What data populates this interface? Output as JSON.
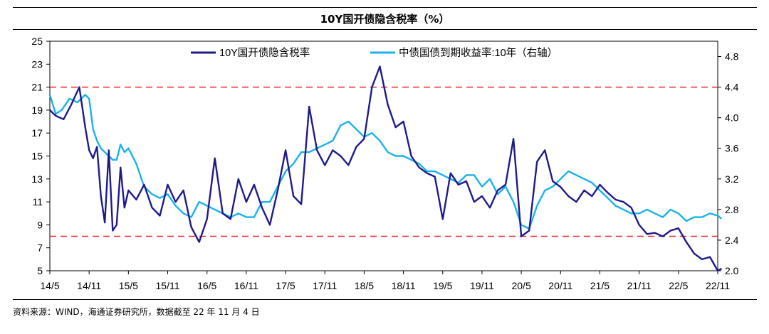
{
  "title": "10Y国开债隐含税率（%）",
  "source": "资料来源：WIND，海通证券研究所，数据截至 22 年 11 月 4 日",
  "colors": {
    "series1": "#1f1a8a",
    "series2": "#19b2ea",
    "ref": "#e8262a",
    "axis": "#000000"
  },
  "chart_data": {
    "type": "line",
    "x_ticks": [
      "14/5",
      "14/11",
      "15/5",
      "15/11",
      "16/5",
      "16/11",
      "17/5",
      "17/11",
      "18/5",
      "18/11",
      "19/5",
      "19/11",
      "20/5",
      "20/11",
      "21/5",
      "21/11",
      "22/5",
      "22/11"
    ],
    "yleft": {
      "lim": [
        5,
        25
      ],
      "ticks": [
        "5",
        "7",
        "9",
        "11",
        "13",
        "15",
        "17",
        "19",
        "21",
        "23",
        "25"
      ]
    },
    "yright": {
      "lim": [
        2.0,
        5.0
      ],
      "ticks": [
        "2.0",
        "2.4",
        "2.8",
        "3.2",
        "3.6",
        "4.0",
        "4.4",
        "4.8"
      ]
    },
    "reference_lines_left": [
      21,
      8
    ],
    "legend_position": "top-center",
    "series": [
      {
        "name": "10Y国开债隐含税率",
        "axis": "left",
        "x": [
          0,
          0.15,
          0.35,
          0.55,
          0.75,
          0.9,
          1.0,
          1.1,
          1.2,
          1.3,
          1.4,
          1.5,
          1.6,
          1.7,
          1.8,
          1.9,
          2.0,
          2.2,
          2.4,
          2.6,
          2.8,
          3.0,
          3.2,
          3.4,
          3.6,
          3.8,
          4.0,
          4.2,
          4.4,
          4.6,
          4.8,
          5.0,
          5.2,
          5.4,
          5.6,
          5.8,
          6.0,
          6.2,
          6.4,
          6.6,
          6.8,
          7.0,
          7.2,
          7.4,
          7.6,
          7.8,
          8.0,
          8.2,
          8.4,
          8.6,
          8.8,
          9.0,
          9.2,
          9.4,
          9.6,
          9.8,
          10.0,
          10.2,
          10.4,
          10.6,
          10.8,
          11.0,
          11.2,
          11.4,
          11.6,
          11.8,
          12.0,
          12.2,
          12.4,
          12.6,
          12.8,
          13.0,
          13.2,
          13.4,
          13.6,
          13.8,
          14.0,
          14.2,
          14.4,
          14.6,
          14.8,
          15.0,
          15.2,
          15.4,
          15.6,
          15.8,
          16.0,
          16.2,
          16.4,
          16.6,
          16.8,
          17.0,
          17.1
        ],
        "values": [
          19.0,
          18.5,
          18.2,
          19.5,
          21.0,
          17.5,
          15.5,
          14.8,
          15.8,
          11.5,
          9.2,
          15.5,
          8.5,
          9.0,
          14.0,
          10.5,
          12.0,
          11.2,
          12.5,
          10.5,
          9.8,
          12.5,
          11.0,
          12.0,
          8.8,
          7.5,
          9.5,
          14.8,
          10.0,
          9.5,
          13.0,
          11.0,
          12.5,
          10.5,
          9.0,
          12.0,
          15.5,
          11.5,
          10.8,
          19.3,
          15.5,
          14.2,
          15.5,
          15.0,
          14.2,
          15.8,
          16.5,
          21.0,
          22.8,
          19.5,
          17.5,
          18.0,
          15.0,
          14.0,
          13.5,
          13.2,
          9.5,
          13.5,
          12.5,
          12.8,
          11.0,
          11.5,
          10.5,
          12.0,
          12.5,
          16.5,
          8.0,
          8.5,
          14.5,
          15.5,
          12.8,
          12.3,
          11.5,
          11.0,
          12.0,
          11.5,
          12.5,
          11.8,
          11.2,
          11.0,
          10.5,
          9.0,
          8.2,
          8.3,
          8.0,
          8.5,
          8.7,
          7.5,
          6.5,
          6.0,
          6.2,
          5.0,
          5.2
        ]
      },
      {
        "name": "中债国债到期收益率:10年（右轴）",
        "axis": "right",
        "x": [
          0,
          0.15,
          0.3,
          0.5,
          0.7,
          0.9,
          1.0,
          1.1,
          1.2,
          1.3,
          1.4,
          1.5,
          1.6,
          1.7,
          1.8,
          1.9,
          2.0,
          2.2,
          2.4,
          2.6,
          2.8,
          3.0,
          3.2,
          3.4,
          3.6,
          3.8,
          4.0,
          4.2,
          4.4,
          4.6,
          4.8,
          5.0,
          5.2,
          5.4,
          5.6,
          5.8,
          6.0,
          6.2,
          6.4,
          6.6,
          6.8,
          7.0,
          7.2,
          7.4,
          7.6,
          7.8,
          8.0,
          8.2,
          8.4,
          8.6,
          8.8,
          9.0,
          9.2,
          9.4,
          9.6,
          9.8,
          10.0,
          10.2,
          10.4,
          10.6,
          10.8,
          11.0,
          11.2,
          11.4,
          11.6,
          11.8,
          12.0,
          12.2,
          12.4,
          12.6,
          12.8,
          13.0,
          13.2,
          13.4,
          13.6,
          13.8,
          14.0,
          14.2,
          14.4,
          14.6,
          14.8,
          15.0,
          15.2,
          15.4,
          15.6,
          15.8,
          16.0,
          16.2,
          16.4,
          16.6,
          16.8,
          17.0,
          17.1
        ],
        "values": [
          4.3,
          4.05,
          4.1,
          4.25,
          4.2,
          4.3,
          4.25,
          3.85,
          3.7,
          3.6,
          3.55,
          3.5,
          3.45,
          3.45,
          3.65,
          3.55,
          3.6,
          3.4,
          3.1,
          3.0,
          2.95,
          3.0,
          2.85,
          2.75,
          2.7,
          2.9,
          2.85,
          2.8,
          2.75,
          2.7,
          2.75,
          2.7,
          2.7,
          2.9,
          2.9,
          3.1,
          3.3,
          3.4,
          3.55,
          3.55,
          3.6,
          3.65,
          3.7,
          3.9,
          3.95,
          3.85,
          3.75,
          3.8,
          3.7,
          3.55,
          3.5,
          3.5,
          3.45,
          3.4,
          3.3,
          3.3,
          3.25,
          3.2,
          3.15,
          3.25,
          3.25,
          3.1,
          3.2,
          3.0,
          3.1,
          2.9,
          2.6,
          2.55,
          2.85,
          3.05,
          3.1,
          3.2,
          3.3,
          3.25,
          3.2,
          3.15,
          3.05,
          2.95,
          2.85,
          2.8,
          2.75,
          2.75,
          2.8,
          2.75,
          2.7,
          2.8,
          2.75,
          2.65,
          2.7,
          2.7,
          2.75,
          2.72,
          2.68
        ]
      }
    ]
  }
}
